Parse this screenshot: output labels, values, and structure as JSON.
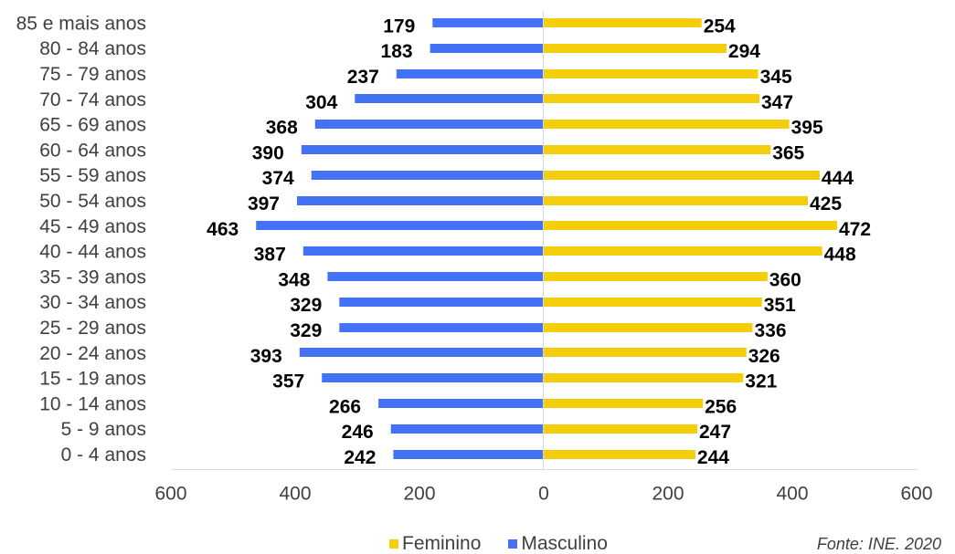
{
  "chart_data": {
    "type": "bar",
    "orientation": "horizontal",
    "categories": [
      "85 e mais anos",
      "80 - 84 anos",
      "75 - 79 anos",
      "70 - 74 anos",
      "65 - 69 anos",
      "60 - 64 anos",
      "55 - 59 anos",
      "50 - 54 anos",
      "45 - 49 anos",
      "40 - 44 anos",
      "35 - 39 anos",
      "30 - 34 anos",
      "25 - 29 anos",
      "20 - 24 anos",
      "15 - 19 anos",
      "10 - 14 anos",
      "5 - 9 anos",
      "0 - 4 anos"
    ],
    "series": [
      {
        "name": "Feminino",
        "side": "right",
        "color": "#F4CE0B",
        "values": [
          254,
          294,
          345,
          347,
          395,
          365,
          444,
          425,
          472,
          448,
          360,
          351,
          336,
          326,
          321,
          256,
          247,
          244
        ]
      },
      {
        "name": "Masculino",
        "side": "left",
        "color": "#4472F4",
        "values": [
          179,
          183,
          237,
          304,
          368,
          390,
          374,
          397,
          463,
          387,
          348,
          329,
          329,
          393,
          357,
          266,
          246,
          242
        ]
      }
    ],
    "xlim": [
      0,
      600
    ],
    "mirrored_axis": true,
    "xtick_labels": [
      "600",
      "400",
      "200",
      "0",
      "200",
      "400",
      "600"
    ],
    "data_labels": true,
    "grid": false,
    "legend_position": "bottom"
  },
  "source_note": "Fonte: INE. 2020"
}
